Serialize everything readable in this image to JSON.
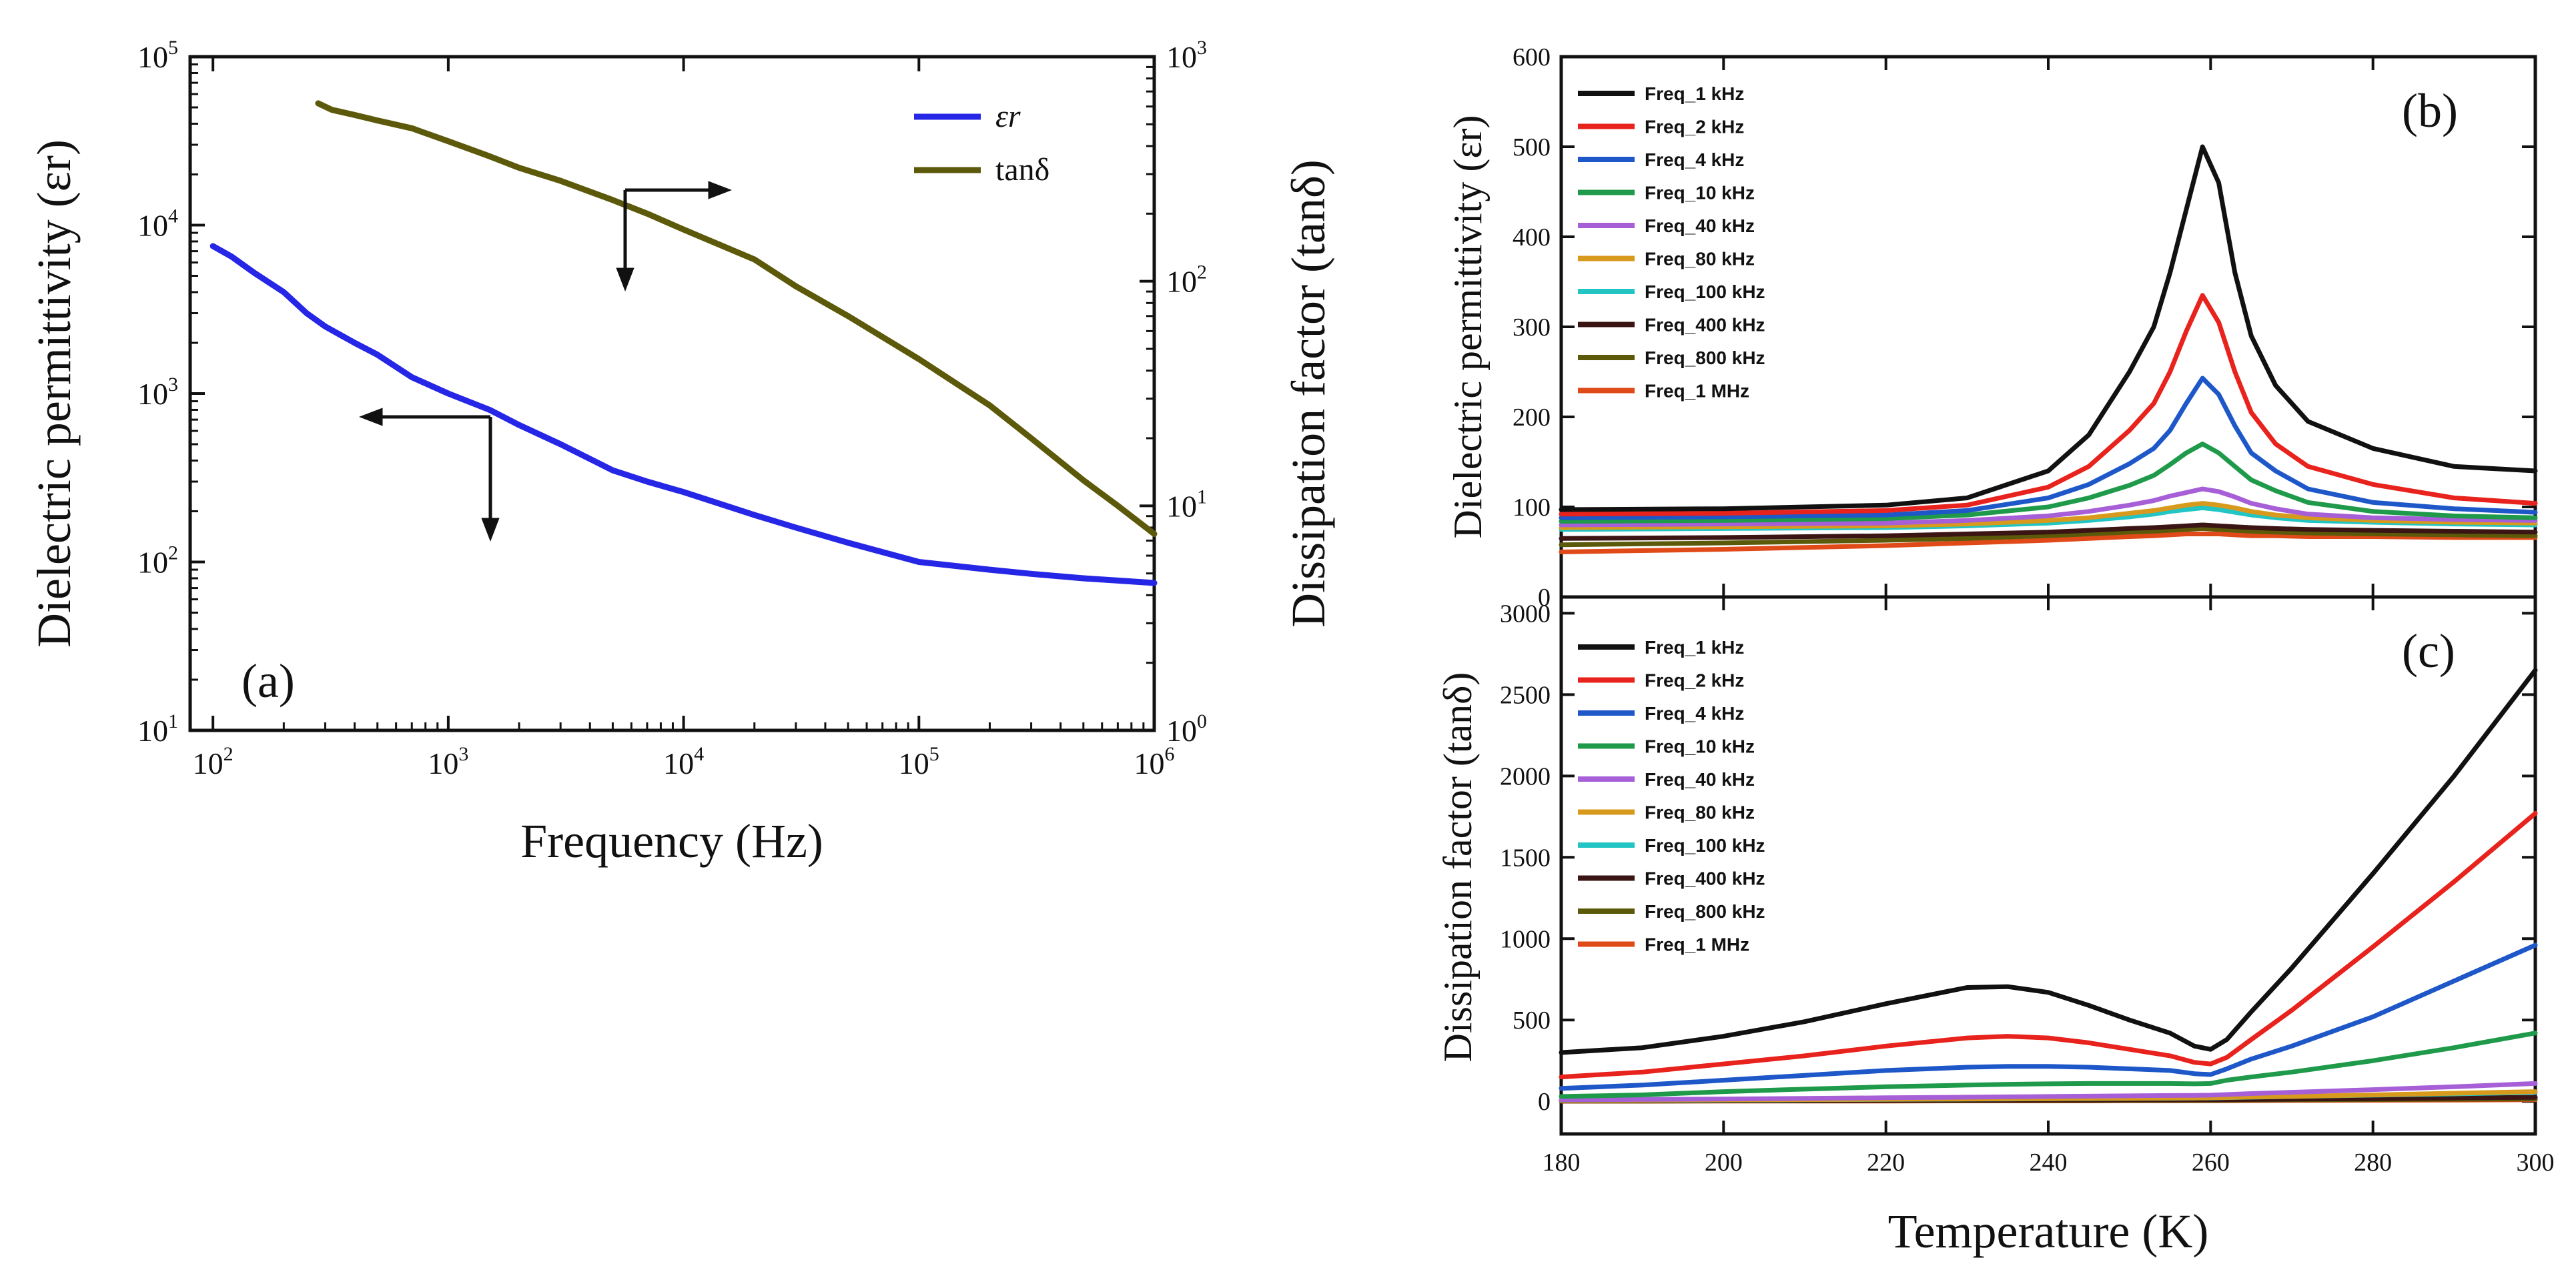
{
  "chart_data": [
    {
      "panel": "a",
      "type": "line",
      "panel_label": "(a)",
      "xlabel": "Frequency (Hz)",
      "ylabel_left": "Dielectric permittivity (εr)",
      "ylabel_right": "Dissipation factor (tanδ)",
      "x_scale": "log",
      "xlim": [
        80,
        1000000
      ],
      "ylim_left": [
        10,
        100000
      ],
      "ylim_right": [
        1,
        1000
      ],
      "x_ticks": [
        {
          "base": "10",
          "exp": "2",
          "value": 100
        },
        {
          "base": "10",
          "exp": "3",
          "value": 1000
        },
        {
          "base": "10",
          "exp": "4",
          "value": 10000
        },
        {
          "base": "10",
          "exp": "5",
          "value": 100000
        },
        {
          "base": "10",
          "exp": "6",
          "value": 1000000
        }
      ],
      "y_ticks_left": [
        {
          "base": "10",
          "exp": "1",
          "value": 10
        },
        {
          "base": "10",
          "exp": "2",
          "value": 100
        },
        {
          "base": "10",
          "exp": "3",
          "value": 1000
        },
        {
          "base": "10",
          "exp": "4",
          "value": 10000
        },
        {
          "base": "10",
          "exp": "5",
          "value": 100000
        }
      ],
      "y_ticks_right": [
        {
          "base": "10",
          "exp": "0",
          "value": 1
        },
        {
          "base": "10",
          "exp": "1",
          "value": 10
        },
        {
          "base": "10",
          "exp": "2",
          "value": 100
        },
        {
          "base": "10",
          "exp": "3",
          "value": 1000
        }
      ],
      "series": [
        {
          "name": "εr",
          "axis": "left",
          "color": "#2626e6",
          "x": [
            100,
            120,
            150,
            200,
            250,
            300,
            400,
            500,
            700,
            1000,
            1500,
            2000,
            3000,
            5000,
            7000,
            10000,
            20000,
            30000,
            50000,
            100000,
            200000,
            300000,
            500000,
            1000000
          ],
          "y": [
            7500,
            6500,
            5200,
            4000,
            3000,
            2500,
            2000,
            1700,
            1250,
            1000,
            800,
            650,
            500,
            350,
            300,
            260,
            190,
            160,
            130,
            100,
            90,
            85,
            80,
            75
          ]
        },
        {
          "name": "tanδ",
          "axis": "right",
          "color": "#5c5a0a",
          "x": [
            280,
            320,
            400,
            500,
            700,
            1000,
            1500,
            2000,
            3000,
            5000,
            7000,
            10000,
            20000,
            30000,
            50000,
            100000,
            200000,
            300000,
            500000,
            700000,
            1000000
          ],
          "y": [
            620,
            580,
            550,
            520,
            480,
            420,
            360,
            320,
            280,
            230,
            200,
            170,
            125,
            95,
            70,
            45,
            28,
            20,
            13,
            10,
            7.5
          ]
        }
      ],
      "annotations": [
        "arrow-left-to-εr-axis",
        "arrow-right-to-tanδ-axis"
      ]
    },
    {
      "panel": "b",
      "type": "line",
      "panel_label": "(b)",
      "ylabel": "Dielectric permittivity (εr)",
      "xlim": [
        180,
        300
      ],
      "ylim": [
        0,
        600
      ],
      "y_ticks": [
        "0",
        "100",
        "200",
        "300",
        "400",
        "500",
        "600"
      ],
      "legend": "top-left",
      "x": [
        180,
        200,
        220,
        230,
        240,
        245,
        250,
        253,
        255,
        257,
        259,
        261,
        263,
        265,
        268,
        272,
        280,
        290,
        300
      ],
      "series": [
        {
          "name": "Freq_1 kHz",
          "color": "#111111",
          "values": [
            97,
            98,
            102,
            110,
            140,
            180,
            250,
            300,
            360,
            430,
            500,
            460,
            360,
            290,
            235,
            195,
            165,
            145,
            140
          ]
        },
        {
          "name": "Freq_2 kHz",
          "color": "#e8221c",
          "values": [
            92,
            93,
            96,
            102,
            122,
            145,
            185,
            215,
            250,
            295,
            335,
            305,
            250,
            205,
            170,
            145,
            125,
            110,
            104
          ]
        },
        {
          "name": "Freq_4 kHz",
          "color": "#1e57c8",
          "values": [
            88,
            89,
            91,
            96,
            110,
            125,
            148,
            165,
            185,
            215,
            243,
            225,
            190,
            160,
            140,
            120,
            105,
            98,
            94
          ]
        },
        {
          "name": "Freq_10 kHz",
          "color": "#1f9a4a",
          "values": [
            84,
            85,
            87,
            91,
            100,
            110,
            124,
            135,
            147,
            160,
            170,
            160,
            145,
            130,
            118,
            105,
            95,
            90,
            88
          ]
        },
        {
          "name": "Freq_40 kHz",
          "color": "#a65fd6",
          "values": [
            80,
            81,
            82,
            85,
            90,
            95,
            102,
            107,
            112,
            116,
            120,
            117,
            111,
            104,
            98,
            92,
            88,
            86,
            85
          ]
        },
        {
          "name": "Freq_80 kHz",
          "color": "#d89a1c",
          "values": [
            77,
            78,
            79,
            81,
            85,
            88,
            93,
            96,
            99,
            102,
            104,
            102,
            99,
            95,
            91,
            88,
            85,
            83,
            82
          ]
        },
        {
          "name": "Freq_100 kHz",
          "color": "#22c4c4",
          "values": [
            75,
            76,
            77,
            79,
            82,
            85,
            89,
            92,
            95,
            97,
            99,
            97,
            94,
            91,
            88,
            85,
            83,
            81,
            80
          ]
        },
        {
          "name": "Freq_400 kHz",
          "color": "#3b1414",
          "values": [
            65,
            66,
            68,
            70,
            72,
            74,
            76,
            77,
            78,
            79,
            80,
            79,
            78,
            77,
            76,
            75,
            74,
            73,
            72
          ]
        },
        {
          "name": "Freq_800 kHz",
          "color": "#5c5a0a",
          "values": [
            58,
            60,
            63,
            65,
            68,
            70,
            72,
            73,
            74,
            75,
            76,
            75,
            74,
            73,
            72,
            71,
            70,
            69,
            68
          ]
        },
        {
          "name": "Freq_1 MHz",
          "color": "#e04a18",
          "values": [
            50,
            53,
            57,
            60,
            63,
            65,
            67,
            68,
            69,
            70,
            70,
            70,
            69,
            68,
            68,
            67,
            67,
            66,
            66
          ]
        }
      ]
    },
    {
      "panel": "c",
      "type": "line",
      "panel_label": "(c)",
      "xlabel": "Temperature (K)",
      "ylabel": "Dissipation factor (tanδ)",
      "xlim": [
        180,
        300
      ],
      "ylim": [
        -200,
        3100
      ],
      "x_ticks": [
        "180",
        "200",
        "220",
        "240",
        "260",
        "280",
        "300"
      ],
      "y_ticks": [
        "0",
        "500",
        "1000",
        "1500",
        "2000",
        "2500",
        "3000"
      ],
      "legend": "top-left",
      "x": [
        180,
        190,
        200,
        210,
        220,
        230,
        235,
        240,
        245,
        250,
        255,
        258,
        260,
        262,
        265,
        270,
        280,
        290,
        300
      ],
      "series": [
        {
          "name": "Freq_1 kHz",
          "color": "#111111",
          "values": [
            300,
            330,
            400,
            490,
            600,
            700,
            705,
            670,
            590,
            500,
            420,
            340,
            320,
            380,
            550,
            820,
            1400,
            2000,
            2650
          ]
        },
        {
          "name": "Freq_2 kHz",
          "color": "#e8221c",
          "values": [
            150,
            180,
            230,
            280,
            340,
            390,
            400,
            390,
            360,
            320,
            280,
            240,
            230,
            270,
            380,
            560,
            950,
            1350,
            1770
          ]
        },
        {
          "name": "Freq_4 kHz",
          "color": "#1e57c8",
          "values": [
            80,
            100,
            130,
            160,
            190,
            210,
            215,
            215,
            210,
            200,
            190,
            170,
            165,
            200,
            260,
            340,
            520,
            740,
            960
          ]
        },
        {
          "name": "Freq_10 kHz",
          "color": "#1f9a4a",
          "values": [
            30,
            40,
            60,
            75,
            90,
            100,
            105,
            108,
            110,
            110,
            110,
            108,
            110,
            130,
            150,
            180,
            250,
            330,
            420
          ]
        },
        {
          "name": "Freq_40 kHz",
          "color": "#a65fd6",
          "values": [
            10,
            12,
            15,
            18,
            22,
            26,
            28,
            30,
            32,
            34,
            36,
            37,
            38,
            42,
            48,
            56,
            72,
            90,
            110
          ]
        },
        {
          "name": "Freq_80 kHz",
          "color": "#d89a1c",
          "values": [
            6,
            7,
            9,
            11,
            13,
            15,
            16,
            17,
            18,
            19,
            20,
            21,
            22,
            24,
            27,
            31,
            40,
            50,
            60
          ]
        },
        {
          "name": "Freq_100 kHz",
          "color": "#22c4c4",
          "values": [
            5,
            6,
            8,
            10,
            12,
            14,
            15,
            16,
            17,
            18,
            19,
            20,
            21,
            23,
            26,
            30,
            38,
            46,
            55
          ]
        },
        {
          "name": "Freq_400 kHz",
          "color": "#3b1414",
          "values": [
            3,
            3,
            4,
            5,
            6,
            7,
            7,
            8,
            8,
            9,
            9,
            10,
            10,
            11,
            12,
            14,
            17,
            21,
            25
          ]
        },
        {
          "name": "Freq_800 kHz",
          "color": "#5c5a0a",
          "values": [
            2,
            2,
            3,
            3,
            4,
            4,
            5,
            5,
            5,
            6,
            6,
            6,
            6,
            7,
            8,
            9,
            11,
            13,
            15
          ]
        },
        {
          "name": "Freq_1 MHz",
          "color": "#e04a18",
          "values": [
            1,
            1,
            2,
            2,
            2,
            3,
            3,
            3,
            3,
            4,
            4,
            4,
            4,
            4,
            5,
            6,
            7,
            8,
            10
          ]
        }
      ]
    }
  ]
}
